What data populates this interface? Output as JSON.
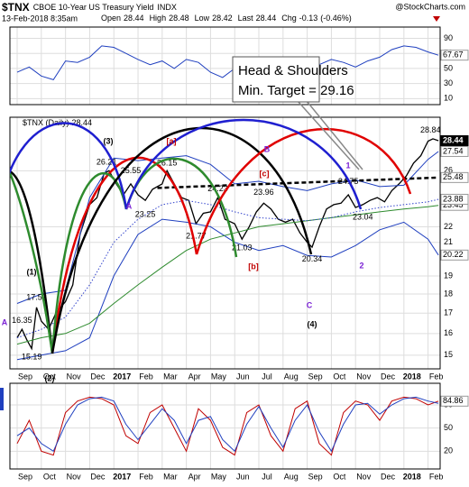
{
  "header": {
    "symbol": "$TNX",
    "name": "CBOE 10-Year US Treasury Yield",
    "exchange": "INDX",
    "date": "13-Feb-2018 8:35am",
    "quote_labels": [
      "Open",
      "High",
      "Low",
      "Last",
      "Chg"
    ],
    "quote_values": [
      28.44,
      28.48,
      28.42,
      28.44,
      -0.13
    ],
    "chg_pct": "(-0.46%)",
    "credit": "@StockCharts.com"
  },
  "annotations": {
    "waves": [
      "(3)",
      "[a]",
      "B",
      "[c]",
      "1",
      "A",
      "(1)",
      "[b]",
      "C",
      "(4)",
      "2",
      "(2)",
      "A"
    ],
    "callout": [
      "Head & Shoulders",
      "Min. Target = 29.16"
    ]
  },
  "chart_data": [
    {
      "type": "line",
      "xlim": [
        -0.3,
        17.5
      ],
      "ylim": [
        2,
        105
      ],
      "yticks": [
        10,
        30,
        50,
        70,
        90
      ],
      "x": [
        0,
        0.5,
        1,
        1.5,
        2,
        2.5,
        3,
        3.5,
        4,
        4.5,
        5,
        5.5,
        6,
        6.5,
        7,
        7.5,
        8,
        8.5,
        9,
        9.5,
        10,
        10.5,
        11,
        11.5,
        12,
        12.5,
        13,
        13.5,
        14,
        14.5,
        15,
        15.5,
        16,
        16.5,
        17,
        17.43
      ],
      "series": [
        {
          "color": "#1f3fbf",
          "values": [
            45,
            52,
            40,
            35,
            60,
            58,
            65,
            80,
            78,
            70,
            62,
            55,
            60,
            50,
            62,
            58,
            45,
            38,
            50,
            58,
            48,
            42,
            52,
            45,
            38,
            55,
            62,
            58,
            52,
            60,
            65,
            75,
            80,
            78,
            72,
            67.67
          ]
        }
      ]
    },
    {
      "type": "line",
      "log": true,
      "xlim": [
        -0.3,
        17.5
      ],
      "ylim": [
        14.4,
        30.5
      ],
      "yticks": [
        15,
        16,
        17,
        18,
        19,
        21,
        22,
        26
      ],
      "xticks": [
        {
          "value": 0,
          "label": "Sep"
        },
        {
          "value": 1,
          "label": "Oct"
        },
        {
          "value": 2,
          "label": "Nov"
        },
        {
          "value": 3,
          "label": "Dec"
        },
        {
          "value": 4,
          "label": "2017"
        },
        {
          "value": 5,
          "label": "Feb"
        },
        {
          "value": 6,
          "label": "Mar"
        },
        {
          "value": 7,
          "label": "Apr"
        },
        {
          "value": 8,
          "label": "May"
        },
        {
          "value": 9,
          "label": "Jun"
        },
        {
          "value": 10,
          "label": "Jul"
        },
        {
          "value": 11,
          "label": "Aug"
        },
        {
          "value": 12,
          "label": "Sep"
        },
        {
          "value": 13,
          "label": "Oct"
        },
        {
          "value": 14,
          "label": "Nov"
        },
        {
          "value": 15,
          "label": "Dec"
        },
        {
          "value": 16,
          "label": "2018"
        },
        {
          "value": 17,
          "label": "Feb"
        }
      ],
      "series": [
        {
          "name": "$TNX (Daily)",
          "color": "#000000",
          "x": [
            0,
            0.2,
            0.4,
            0.6,
            0.8,
            1.0,
            1.3,
            1.6,
            2.0,
            2.3,
            2.6,
            3.0,
            3.3,
            3.6,
            3.8,
            4.1,
            4.4,
            4.7,
            5.0,
            5.3,
            5.6,
            6.0,
            6.2,
            6.5,
            6.8,
            7.1,
            7.4,
            7.7,
            8.0,
            8.3,
            8.6,
            9.0,
            9.3,
            9.6,
            9.9,
            10.2,
            10.5,
            10.8,
            11.1,
            11.4,
            11.7,
            12.0,
            12.2,
            12.5,
            12.8,
            13.1,
            13.4,
            13.7,
            14.0,
            14.3,
            14.6,
            14.9,
            15.2,
            15.5,
            15.8,
            16.1,
            16.4,
            16.7,
            17.0,
            17.2,
            17.43
          ],
          "values": [
            15.8,
            16.2,
            15.7,
            15.3,
            17.3,
            16.6,
            16.2,
            17.0,
            17.6,
            18.5,
            21.5,
            23.5,
            24.0,
            25.8,
            26.0,
            25.0,
            24.2,
            25.0,
            24.2,
            23.8,
            24.6,
            25.0,
            26.0,
            25.0,
            24.0,
            23.8,
            22.2,
            22.9,
            23.0,
            24.0,
            22.5,
            22.2,
            21.2,
            22.0,
            23.0,
            23.6,
            23.2,
            22.5,
            22.3,
            22.5,
            21.6,
            21.0,
            20.7,
            22.0,
            23.2,
            23.5,
            23.6,
            24.2,
            23.3,
            23.5,
            23.8,
            24.0,
            23.7,
            24.5,
            25.0,
            25.6,
            26.6,
            27.2,
            28.4,
            28.6,
            28.44
          ]
        },
        {
          "color": "#1f3fbf",
          "x": [
            0,
            1,
            2,
            3,
            4,
            5,
            6,
            7,
            8,
            9,
            10,
            11,
            12,
            13,
            14,
            15,
            16,
            17,
            17.43
          ],
          "values": [
            17.5,
            18.0,
            18.2,
            24.0,
            27.0,
            26.8,
            27.0,
            27.2,
            26.5,
            25.0,
            25.2,
            24.8,
            24.5,
            25.0,
            25.3,
            24.8,
            24.9,
            26.9,
            27.54
          ]
        },
        {
          "color": "#1f3fbf",
          "x": [
            0,
            1,
            2,
            3,
            4,
            5,
            6,
            7,
            8,
            9,
            10,
            11,
            12,
            13,
            14,
            15,
            16,
            17,
            17.43
          ],
          "values": [
            14.8,
            15.0,
            15.2,
            15.8,
            19.0,
            21.5,
            22.5,
            22.3,
            22.0,
            21.0,
            20.5,
            20.8,
            20.2,
            20.1,
            20.8,
            21.8,
            22.3,
            21.2,
            20.22
          ]
        },
        {
          "color": "#2e8b2e",
          "x": [
            0,
            1,
            2,
            3,
            4,
            5,
            6,
            7,
            8,
            9,
            10,
            11,
            12,
            13,
            14,
            15,
            16,
            17,
            17.43
          ],
          "values": [
            15.5,
            15.8,
            16.0,
            16.5,
            17.5,
            18.5,
            19.5,
            20.5,
            21.2,
            21.6,
            22.0,
            22.2,
            22.4,
            22.6,
            22.8,
            23.0,
            23.2,
            23.35,
            23.45
          ]
        },
        {
          "color": "#3344cc",
          "line_style": "dotted",
          "x": [
            0,
            1,
            2,
            3,
            4,
            5,
            6,
            7,
            8,
            9,
            10,
            11,
            12,
            13,
            14,
            15,
            16,
            17,
            17.43
          ],
          "values": [
            15.8,
            16.2,
            16.8,
            18.5,
            21.0,
            22.5,
            23.5,
            23.8,
            23.5,
            23.0,
            22.6,
            22.5,
            22.4,
            22.6,
            23.0,
            23.3,
            23.5,
            23.7,
            23.88
          ]
        },
        {
          "color": "#000000",
          "line_style": "dashed",
          "x": [
            5.8,
            17.43
          ],
          "values": [
            24.7,
            25.48
          ]
        }
      ],
      "peaks": {
        "x": [
          0.2,
          0.6,
          0.8,
          3.7,
          4.7,
          5.3,
          6.2,
          7.4,
          8.3,
          9.3,
          10.2,
          12.2,
          13.7,
          14.3,
          17.1
        ],
        "values": [
          16.35,
          15.19,
          17.52,
          26.21,
          25.55,
          23.25,
          26.15,
          21.77,
          24.23,
          21.03,
          23.96,
          20.34,
          24.75,
          23.04,
          28.84
        ]
      }
    },
    {
      "type": "line",
      "xlim": [
        -0.3,
        17.5
      ],
      "ylim": [
        -3,
        108
      ],
      "yticks": [
        20,
        50,
        80
      ],
      "xticks": [
        {
          "value": 0,
          "label": "Sep"
        },
        {
          "value": 1,
          "label": "Oct"
        },
        {
          "value": 2,
          "label": "Nov"
        },
        {
          "value": 3,
          "label": "Dec"
        },
        {
          "value": 4,
          "label": "2017"
        },
        {
          "value": 5,
          "label": "Feb"
        },
        {
          "value": 6,
          "label": "Mar"
        },
        {
          "value": 7,
          "label": "Apr"
        },
        {
          "value": 8,
          "label": "May"
        },
        {
          "value": 9,
          "label": "Jun"
        },
        {
          "value": 10,
          "label": "Jul"
        },
        {
          "value": 11,
          "label": "Aug"
        },
        {
          "value": 12,
          "label": "Sep"
        },
        {
          "value": 13,
          "label": "Oct"
        },
        {
          "value": 14,
          "label": "Nov"
        },
        {
          "value": 15,
          "label": "Dec"
        },
        {
          "value": 16,
          "label": "2018"
        },
        {
          "value": 17,
          "label": "Feb"
        }
      ],
      "x": [
        0,
        0.5,
        1,
        1.5,
        2,
        2.5,
        3,
        3.5,
        4,
        4.5,
        5,
        5.5,
        6,
        6.5,
        7,
        7.5,
        8,
        8.5,
        9,
        9.5,
        10,
        10.5,
        11,
        11.5,
        12,
        12.5,
        13,
        13.5,
        14,
        14.5,
        15,
        15.5,
        16,
        16.5,
        17,
        17.43
      ],
      "series": [
        {
          "color": "#c00000",
          "values": [
            30,
            60,
            20,
            15,
            70,
            85,
            90,
            88,
            80,
            40,
            30,
            70,
            80,
            50,
            20,
            75,
            60,
            25,
            15,
            70,
            80,
            40,
            20,
            75,
            85,
            30,
            15,
            70,
            85,
            80,
            60,
            85,
            90,
            88,
            80,
            84.86
          ]
        },
        {
          "color": "#1f3fbf",
          "flag": false,
          "values": [
            40,
            50,
            30,
            20,
            55,
            80,
            88,
            90,
            85,
            55,
            35,
            55,
            75,
            60,
            30,
            60,
            65,
            35,
            20,
            55,
            78,
            50,
            25,
            60,
            80,
            45,
            20,
            55,
            80,
            82,
            68,
            80,
            88,
            90,
            85,
            82
          ]
        }
      ]
    }
  ]
}
